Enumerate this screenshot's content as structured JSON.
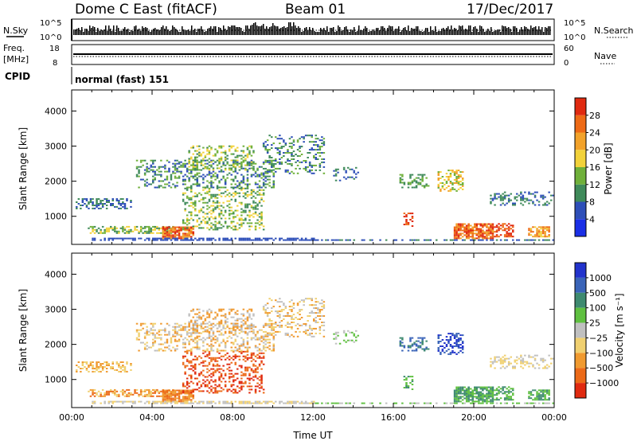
{
  "header": {
    "title": "Dome C East (fitACF)",
    "beam": "Beam 01",
    "date": "17/Dec/2017"
  },
  "strips": {
    "nsky_label": "N.Sky",
    "nsky_ticks": [
      "10^5",
      "10^0"
    ],
    "nsearch_label": "N.Search",
    "nsearch_ticks": [
      "10^5",
      "10^0"
    ],
    "freq_label": "Freq.",
    "freq_unit": "[MHz]",
    "freq_ticks": [
      "18",
      "8"
    ],
    "nave_label": "Nave",
    "nave_ticks": [
      "60",
      "0"
    ],
    "cpid_label": "CPID",
    "cpid_value": "normal (fast) 151"
  },
  "chart_data": [
    {
      "type": "heatmap",
      "title": "",
      "xlabel": "",
      "ylabel": "Slant Range [km]",
      "x_range_hours": [
        0,
        24
      ],
      "ylim": [
        200,
        4600
      ],
      "yticks": [
        1000,
        2000,
        3000,
        4000
      ],
      "colorbar": {
        "label": "Power [dB]",
        "ticks": [
          4,
          8,
          12,
          16,
          20,
          24,
          28
        ],
        "colors": [
          "#1a2fe6",
          "#2e4fb8",
          "#3f8a5a",
          "#6fb03a",
          "#f2d23a",
          "#f2a22a",
          "#ee6a16",
          "#e02a10"
        ]
      }
    },
    {
      "type": "heatmap",
      "title": "",
      "xlabel": "Time UT",
      "ylabel": "Slant Range [km]",
      "x_range_hours": [
        0,
        24
      ],
      "ylim": [
        200,
        4600
      ],
      "yticks": [
        1000,
        2000,
        3000,
        4000
      ],
      "xticks": [
        "00:00",
        "04:00",
        "08:00",
        "12:00",
        "16:00",
        "20:00",
        "00:00"
      ],
      "colorbar": {
        "label": "Velocity [m s⁻¹]",
        "ticks": [
          "1000",
          "500",
          "100",
          "25",
          "−25",
          "−100",
          "−500",
          "−1000"
        ],
        "colors": [
          "#2233cc",
          "#3a64b8",
          "#3e8a70",
          "#5fc040",
          "#c0c0c0",
          "#f0d070",
          "#f09a30",
          "#ec6a18",
          "#e02a10"
        ]
      }
    }
  ]
}
